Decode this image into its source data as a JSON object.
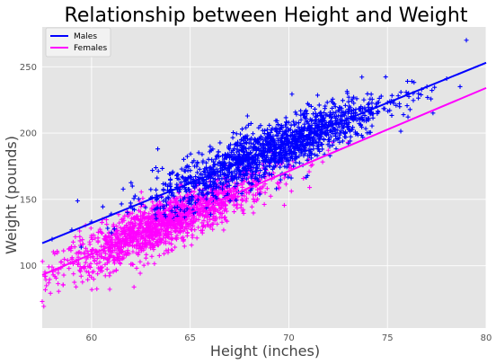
{
  "chart_data": {
    "type": "scatter",
    "title": "Relationship between Height and Weight",
    "xlabel": "Height (inches)",
    "ylabel": "Weight (pounds)",
    "xlim": [
      57.5,
      80
    ],
    "ylim": [
      53,
      280
    ],
    "xticks": [
      60,
      65,
      70,
      75,
      80
    ],
    "yticks": [
      100,
      150,
      200,
      250
    ],
    "grid": true,
    "legend_position": "top-left",
    "marker": "+",
    "colors": {
      "background": "#e5e5e5",
      "grid": "#ffffff",
      "males": "#0000ff",
      "females": "#ff00ff"
    },
    "series": [
      {
        "name": "Males",
        "color": "#0000ff",
        "fit_line": {
          "x": [
            57.5,
            80
          ],
          "y": [
            117,
            253
          ]
        },
        "approx_points": {
          "x": [
            58,
            59,
            60,
            61,
            62,
            63,
            64,
            65,
            66,
            67,
            68,
            69,
            70,
            71,
            72,
            73,
            74,
            75,
            76,
            77,
            78,
            79
          ],
          "y": [
            120,
            127,
            133,
            139,
            145,
            151,
            157,
            163,
            169,
            175,
            181,
            187,
            193,
            199,
            205,
            211,
            217,
            223,
            229,
            235,
            241,
            270
          ]
        }
      },
      {
        "name": "Females",
        "color": "#ff00ff",
        "fit_line": {
          "x": [
            57.5,
            80
          ],
          "y": [
            93,
            234
          ]
        },
        "approx_points": {
          "x": [
            57.5,
            58,
            59,
            60,
            61,
            62,
            63,
            64,
            65,
            66,
            67,
            68,
            69,
            70,
            71,
            72,
            73
          ],
          "y": [
            73,
            99,
            105,
            111,
            118,
            124,
            130,
            136,
            143,
            149,
            155,
            162,
            168,
            174,
            180,
            187,
            193
          ]
        }
      }
    ]
  }
}
